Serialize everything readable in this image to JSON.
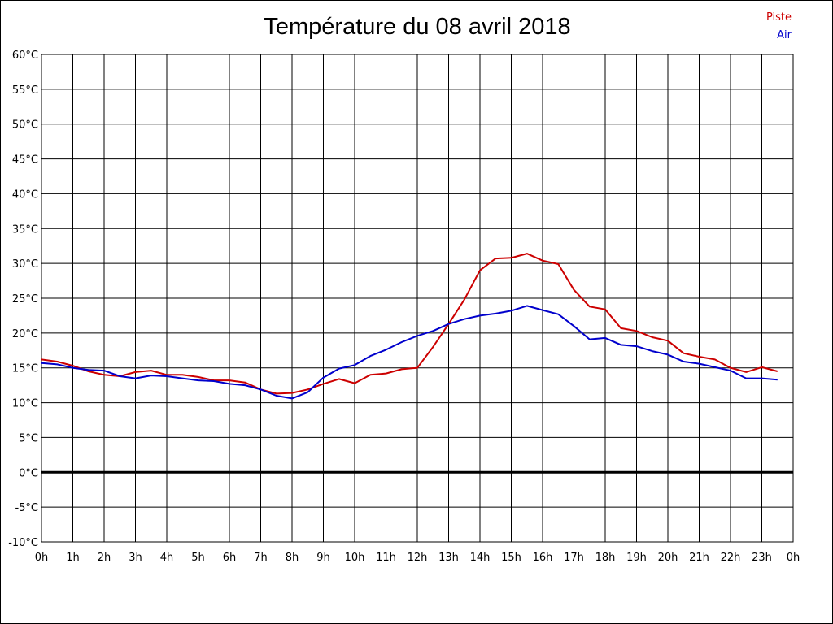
{
  "chart_data": {
    "type": "line",
    "title": "Température du 08 avril 2018",
    "xlabel": "",
    "ylabel": "",
    "x_tick_labels": [
      "0h",
      "1h",
      "2h",
      "3h",
      "4h",
      "5h",
      "6h",
      "7h",
      "8h",
      "9h",
      "10h",
      "11h",
      "12h",
      "13h",
      "14h",
      "15h",
      "16h",
      "17h",
      "18h",
      "19h",
      "20h",
      "21h",
      "22h",
      "23h",
      "0h"
    ],
    "y_tick_labels": [
      "60°C",
      "55°C",
      "50°C",
      "45°C",
      "40°C",
      "35°C",
      "30°C",
      "25°C",
      "20°C",
      "15°C",
      "10°C",
      "5°C",
      "0°C",
      "-5°C",
      "-10°C"
    ],
    "xlim": [
      0,
      24
    ],
    "ylim": [
      -10,
      60
    ],
    "grid": true,
    "legend_position": "top-right",
    "x": [
      0,
      0.5,
      1,
      1.5,
      2,
      2.5,
      3,
      3.5,
      4,
      4.5,
      5,
      5.5,
      6,
      6.5,
      7,
      7.5,
      8,
      8.5,
      9,
      9.5,
      10,
      10.5,
      11,
      11.5,
      12,
      12.5,
      13,
      13.5,
      14,
      14.5,
      15,
      15.5,
      16,
      16.5,
      17,
      17.5,
      18,
      18.5,
      19,
      19.5,
      20,
      20.5,
      21,
      21.5,
      22,
      22.5,
      23,
      23.5
    ],
    "series": [
      {
        "name": "Piste",
        "color": "#cc0000",
        "values": [
          16.2,
          15.9,
          15.3,
          14.5,
          14.0,
          13.8,
          14.4,
          14.6,
          14.0,
          14.0,
          13.7,
          13.2,
          13.2,
          12.9,
          11.9,
          11.3,
          11.4,
          11.9,
          12.7,
          13.4,
          12.8,
          14.0,
          14.2,
          14.8,
          15.0,
          18.0,
          21.3,
          24.8,
          29.0,
          30.7,
          30.8,
          31.4,
          30.4,
          29.9,
          26.2,
          23.8,
          23.4,
          20.7,
          20.3,
          19.4,
          18.9,
          17.1,
          16.6,
          16.2,
          15.0,
          14.4,
          15.1,
          14.5
        ]
      },
      {
        "name": "Air",
        "color": "#0000cc",
        "values": [
          15.7,
          15.5,
          15.0,
          14.7,
          14.6,
          13.8,
          13.5,
          13.9,
          13.8,
          13.5,
          13.2,
          13.1,
          12.7,
          12.5,
          11.9,
          11.0,
          10.6,
          11.5,
          13.6,
          14.9,
          15.4,
          16.7,
          17.6,
          18.7,
          19.6,
          20.3,
          21.3,
          22.0,
          22.5,
          22.8,
          23.2,
          23.9,
          23.3,
          22.7,
          21.0,
          19.1,
          19.3,
          18.3,
          18.1,
          17.4,
          16.9,
          15.9,
          15.6,
          15.1,
          14.6,
          13.5,
          13.5,
          13.3
        ]
      }
    ]
  }
}
